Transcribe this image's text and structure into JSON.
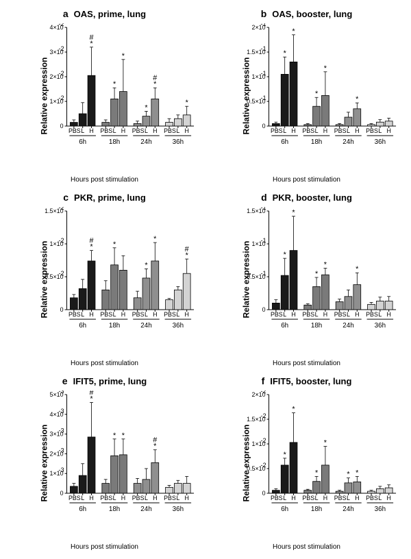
{
  "figure": {
    "background_color": "#ffffff",
    "font_family": "Arial",
    "ylabel": "Relative expression",
    "xlabel": "Hours post stimulation",
    "timepoints": [
      "6h",
      "18h",
      "24h",
      "36h"
    ],
    "group_labels": [
      "PBS",
      "L",
      "H"
    ],
    "panels": [
      {
        "id": "a",
        "title": "OAS, prime, lung",
        "exponent": -2,
        "ymax": 4,
        "ytick_step": 1,
        "timepoint_colors": [
          "#1a1a1a",
          "#7a7a7a",
          "#8f8f8f",
          "#d3d3d3"
        ],
        "groups": [
          {
            "bars": [
              {
                "v": 0.15,
                "e": 0.1,
                "s": ""
              },
              {
                "v": 0.5,
                "e": 0.45,
                "s": ""
              },
              {
                "v": 2.05,
                "e": 1.15,
                "s": "*#"
              }
            ]
          },
          {
            "bars": [
              {
                "v": 0.15,
                "e": 0.1,
                "s": ""
              },
              {
                "v": 1.1,
                "e": 0.45,
                "s": "*"
              },
              {
                "v": 1.4,
                "e": 1.3,
                "s": "*"
              }
            ]
          },
          {
            "bars": [
              {
                "v": 0.1,
                "e": 0.1,
                "s": ""
              },
              {
                "v": 0.4,
                "e": 0.2,
                "s": "*"
              },
              {
                "v": 1.1,
                "e": 0.45,
                "s": "*#"
              }
            ]
          },
          {
            "bars": [
              {
                "v": 0.15,
                "e": 0.15,
                "s": ""
              },
              {
                "v": 0.3,
                "e": 0.15,
                "s": ""
              },
              {
                "v": 0.45,
                "e": 0.35,
                "s": "*"
              }
            ]
          }
        ]
      },
      {
        "id": "b",
        "title": "OAS, booster, lung",
        "exponent": -1,
        "ymax": 2.0,
        "ytick_step": 0.5,
        "timepoint_colors": [
          "#1a1a1a",
          "#7a7a7a",
          "#8f8f8f",
          "#d3d3d3"
        ],
        "groups": [
          {
            "bars": [
              {
                "v": 0.05,
                "e": 0.03,
                "s": ""
              },
              {
                "v": 1.05,
                "e": 0.35,
                "s": "*"
              },
              {
                "v": 1.3,
                "e": 0.55,
                "s": "*"
              }
            ]
          },
          {
            "bars": [
              {
                "v": 0.03,
                "e": 0.02,
                "s": ""
              },
              {
                "v": 0.4,
                "e": 0.18,
                "s": "*"
              },
              {
                "v": 0.62,
                "e": 0.48,
                "s": "*"
              }
            ]
          },
          {
            "bars": [
              {
                "v": 0.03,
                "e": 0.02,
                "s": ""
              },
              {
                "v": 0.18,
                "e": 0.1,
                "s": ""
              },
              {
                "v": 0.35,
                "e": 0.12,
                "s": "*"
              }
            ]
          },
          {
            "bars": [
              {
                "v": 0.03,
                "e": 0.02,
                "s": ""
              },
              {
                "v": 0.08,
                "e": 0.05,
                "s": ""
              },
              {
                "v": 0.1,
                "e": 0.06,
                "s": ""
              }
            ]
          }
        ]
      },
      {
        "id": "c",
        "title": "PKR, prime, lung",
        "exponent": -2,
        "ymax": 1.5,
        "ytick_step": 0.5,
        "timepoint_colors": [
          "#1a1a1a",
          "#7a7a7a",
          "#8f8f8f",
          "#d3d3d3"
        ],
        "groups": [
          {
            "bars": [
              {
                "v": 0.18,
                "e": 0.05,
                "s": ""
              },
              {
                "v": 0.32,
                "e": 0.14,
                "s": ""
              },
              {
                "v": 0.74,
                "e": 0.16,
                "s": "*#"
              }
            ]
          },
          {
            "bars": [
              {
                "v": 0.3,
                "e": 0.14,
                "s": ""
              },
              {
                "v": 0.68,
                "e": 0.26,
                "s": "*"
              },
              {
                "v": 0.6,
                "e": 0.22,
                "s": ""
              }
            ]
          },
          {
            "bars": [
              {
                "v": 0.18,
                "e": 0.1,
                "s": ""
              },
              {
                "v": 0.48,
                "e": 0.14,
                "s": "*"
              },
              {
                "v": 0.74,
                "e": 0.28,
                "s": "*"
              }
            ]
          },
          {
            "bars": [
              {
                "v": 0.15,
                "e": 0.02,
                "s": ""
              },
              {
                "v": 0.3,
                "e": 0.05,
                "s": ""
              },
              {
                "v": 0.55,
                "e": 0.22,
                "s": "*#"
              }
            ]
          }
        ]
      },
      {
        "id": "d",
        "title": "PKR, booster, lung",
        "exponent": -1,
        "ymax": 1.5,
        "ytick_step": 0.5,
        "timepoint_colors": [
          "#1a1a1a",
          "#7a7a7a",
          "#8f8f8f",
          "#d3d3d3"
        ],
        "groups": [
          {
            "bars": [
              {
                "v": 0.1,
                "e": 0.05,
                "s": ""
              },
              {
                "v": 0.52,
                "e": 0.26,
                "s": "*"
              },
              {
                "v": 0.9,
                "e": 0.52,
                "s": "*"
              }
            ]
          },
          {
            "bars": [
              {
                "v": 0.07,
                "e": 0.02,
                "s": ""
              },
              {
                "v": 0.35,
                "e": 0.14,
                "s": "*"
              },
              {
                "v": 0.53,
                "e": 0.1,
                "s": "*"
              }
            ]
          },
          {
            "bars": [
              {
                "v": 0.12,
                "e": 0.04,
                "s": ""
              },
              {
                "v": 0.2,
                "e": 0.1,
                "s": ""
              },
              {
                "v": 0.38,
                "e": 0.18,
                "s": "*"
              }
            ]
          },
          {
            "bars": [
              {
                "v": 0.08,
                "e": 0.03,
                "s": ""
              },
              {
                "v": 0.13,
                "e": 0.06,
                "s": ""
              },
              {
                "v": 0.13,
                "e": 0.07,
                "s": ""
              }
            ]
          }
        ]
      },
      {
        "id": "e",
        "title": "IFIT5, prime, lung",
        "exponent": -3,
        "ymax": 5,
        "ytick_step": 1,
        "timepoint_colors": [
          "#1a1a1a",
          "#7a7a7a",
          "#8f8f8f",
          "#d3d3d3"
        ],
        "groups": [
          {
            "bars": [
              {
                "v": 0.35,
                "e": 0.15,
                "s": ""
              },
              {
                "v": 0.9,
                "e": 0.6,
                "s": ""
              },
              {
                "v": 2.85,
                "e": 1.75,
                "s": "*#"
              }
            ]
          },
          {
            "bars": [
              {
                "v": 0.5,
                "e": 0.2,
                "s": ""
              },
              {
                "v": 1.9,
                "e": 0.85,
                "s": "*"
              },
              {
                "v": 1.95,
                "e": 0.8,
                "s": "*"
              }
            ]
          },
          {
            "bars": [
              {
                "v": 0.5,
                "e": 0.25,
                "s": ""
              },
              {
                "v": 0.7,
                "e": 0.55,
                "s": ""
              },
              {
                "v": 1.55,
                "e": 0.65,
                "s": "*#"
              }
            ]
          },
          {
            "bars": [
              {
                "v": 0.3,
                "e": 0.1,
                "s": ""
              },
              {
                "v": 0.5,
                "e": 0.15,
                "s": ""
              },
              {
                "v": 0.5,
                "e": 0.35,
                "s": ""
              }
            ]
          }
        ]
      },
      {
        "id": "f",
        "title": "IFIT5, booster, lung",
        "exponent": -2,
        "ymax": 2.0,
        "ytick_step": 0.5,
        "timepoint_colors": [
          "#1a1a1a",
          "#7a7a7a",
          "#8f8f8f",
          "#d3d3d3"
        ],
        "groups": [
          {
            "bars": [
              {
                "v": 0.06,
                "e": 0.03,
                "s": ""
              },
              {
                "v": 0.57,
                "e": 0.14,
                "s": "*"
              },
              {
                "v": 1.03,
                "e": 0.6,
                "s": "*"
              }
            ]
          },
          {
            "bars": [
              {
                "v": 0.06,
                "e": 0.02,
                "s": ""
              },
              {
                "v": 0.24,
                "e": 0.1,
                "s": "*"
              },
              {
                "v": 0.57,
                "e": 0.38,
                "s": "*"
              }
            ]
          },
          {
            "bars": [
              {
                "v": 0.04,
                "e": 0.02,
                "s": ""
              },
              {
                "v": 0.21,
                "e": 0.1,
                "s": "*"
              },
              {
                "v": 0.23,
                "e": 0.11,
                "s": "*"
              }
            ]
          },
          {
            "bars": [
              {
                "v": 0.04,
                "e": 0.02,
                "s": ""
              },
              {
                "v": 0.09,
                "e": 0.05,
                "s": ""
              },
              {
                "v": 0.11,
                "e": 0.06,
                "s": ""
              }
            ]
          }
        ]
      }
    ]
  }
}
